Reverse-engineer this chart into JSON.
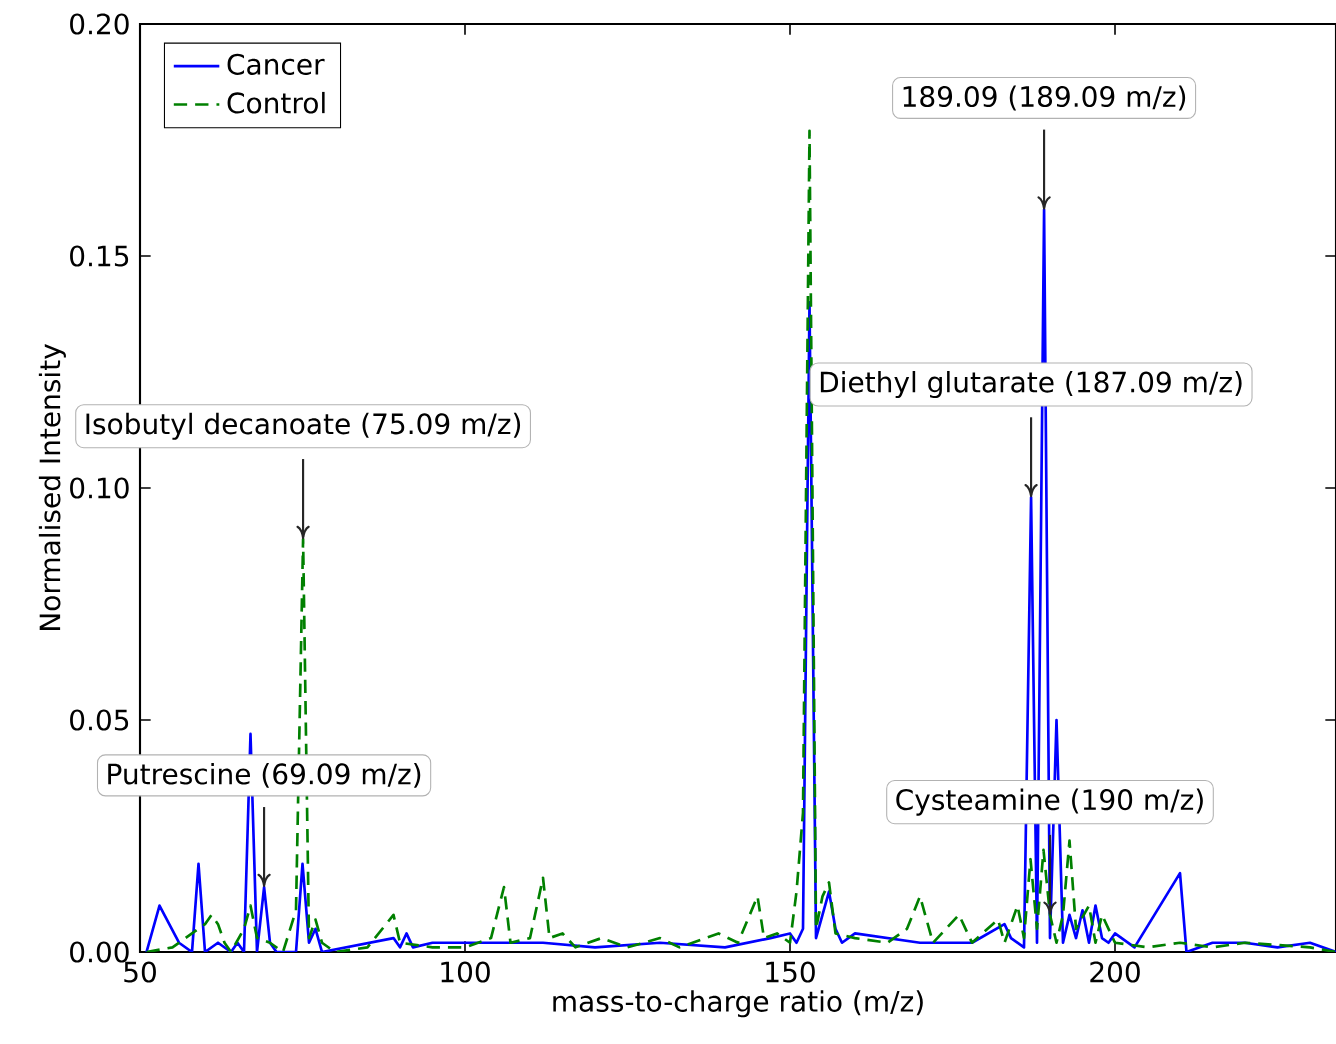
{
  "chart_data": {
    "type": "line",
    "xlabel": "mass-to-charge ratio (m/z)",
    "ylabel": "Normalised Intensity",
    "xlim": [
      50,
      234
    ],
    "ylim": [
      0,
      0.2
    ],
    "xticks": [
      50,
      100,
      150,
      200
    ],
    "yticks": [
      {
        "value": 0,
        "label": "0.00"
      },
      {
        "value": 0.05,
        "label": "0.05"
      },
      {
        "value": 0.1,
        "label": "0.10"
      },
      {
        "value": 0.15,
        "label": "0.15"
      },
      {
        "value": 0.2,
        "label": "0.20"
      }
    ],
    "legend": "top left",
    "series": [
      {
        "name": "Cancer",
        "color": "#0000ff",
        "line_style": "solid",
        "x": [
          51,
          53,
          56,
          58,
          59,
          60,
          62,
          64,
          65,
          66,
          67,
          68,
          69.09,
          70,
          71,
          74,
          75,
          76,
          77,
          78,
          89,
          90,
          91,
          92,
          95,
          105,
          112,
          120,
          130,
          140,
          147,
          150,
          151,
          152,
          153,
          154,
          155,
          156,
          157,
          158,
          160,
          170,
          178,
          183,
          184,
          186,
          187.09,
          188,
          189.09,
          190,
          191,
          192,
          193,
          194,
          195,
          196,
          197,
          198,
          199,
          200,
          203,
          210,
          211,
          215,
          220,
          225,
          230,
          234
        ],
        "values": [
          0,
          0.01,
          0.002,
          0,
          0.019,
          0,
          0.002,
          0,
          0.002,
          0,
          0.047,
          0,
          0.014,
          0.002,
          0,
          0,
          0.019,
          0.002,
          0.005,
          0,
          0.003,
          0.001,
          0.004,
          0.001,
          0.002,
          0.002,
          0.002,
          0.001,
          0.002,
          0.001,
          0.003,
          0.004,
          0.002,
          0.005,
          0.14,
          0.003,
          0.008,
          0.013,
          0.005,
          0.002,
          0.004,
          0.002,
          0.002,
          0.006,
          0.003,
          0.001,
          0.098,
          0.002,
          0.16,
          0.003,
          0.05,
          0.002,
          0.008,
          0.003,
          0.009,
          0.002,
          0.01,
          0.003,
          0.002,
          0.004,
          0.001,
          0.017,
          0,
          0.002,
          0.002,
          0.001,
          0.002,
          0
        ]
      },
      {
        "name": "Control",
        "color": "#008000",
        "line_style": "dashed",
        "x": [
          51,
          55,
          58,
          60,
          61,
          62,
          63,
          64,
          66,
          67,
          68,
          70,
          72,
          74,
          75.09,
          76,
          77,
          78,
          80,
          85,
          89,
          90,
          95,
          100,
          104,
          106,
          107,
          110,
          112,
          113,
          115,
          117,
          121,
          125,
          130,
          133,
          139,
          142,
          145,
          146,
          148,
          150,
          151,
          152,
          153,
          154,
          155,
          156,
          157,
          160,
          165,
          168,
          170,
          172,
          176,
          178,
          182,
          183,
          185,
          186,
          187,
          188,
          189,
          190,
          191,
          192,
          193,
          194,
          196,
          197,
          198,
          200,
          205,
          210,
          215,
          220,
          230,
          234
        ],
        "values": [
          0,
          0.001,
          0.004,
          0.006,
          0.008,
          0.006,
          0.002,
          0,
          0.005,
          0.01,
          0.003,
          0.002,
          0,
          0.009,
          0.089,
          0.003,
          0.007,
          0.002,
          0,
          0.001,
          0.008,
          0.002,
          0.001,
          0.001,
          0.003,
          0.014,
          0.002,
          0.003,
          0.016,
          0.003,
          0.004,
          0.001,
          0.003,
          0.001,
          0.003,
          0.001,
          0.004,
          0.002,
          0.012,
          0.003,
          0.004,
          0.002,
          0.013,
          0.03,
          0.177,
          0.005,
          0.012,
          0.015,
          0.004,
          0.003,
          0.002,
          0.005,
          0.012,
          0.002,
          0.008,
          0.002,
          0.007,
          0.002,
          0.01,
          0.003,
          0.02,
          0.005,
          0.022,
          0.008,
          0.002,
          0.008,
          0.024,
          0.005,
          0.01,
          0.002,
          0.008,
          0.002,
          0.001,
          0.002,
          0.001,
          0.002,
          0.001,
          0
        ]
      }
    ],
    "annotations": [
      {
        "text": "Isobutyl decanoate (75.09 m/z)",
        "x": 75.09,
        "y": 0.089
      },
      {
        "text": "Putrescine (69.09 m/z)",
        "x": 69.09,
        "y": 0.014
      },
      {
        "text": "189.09 (189.09 m/z)",
        "x": 189.09,
        "y": 0.16
      },
      {
        "text": "Diethyl glutarate (187.09 m/z)",
        "x": 187.09,
        "y": 0.098
      },
      {
        "text": "Cysteamine (190 m/z)",
        "x": 190,
        "y": 0.008
      }
    ]
  }
}
